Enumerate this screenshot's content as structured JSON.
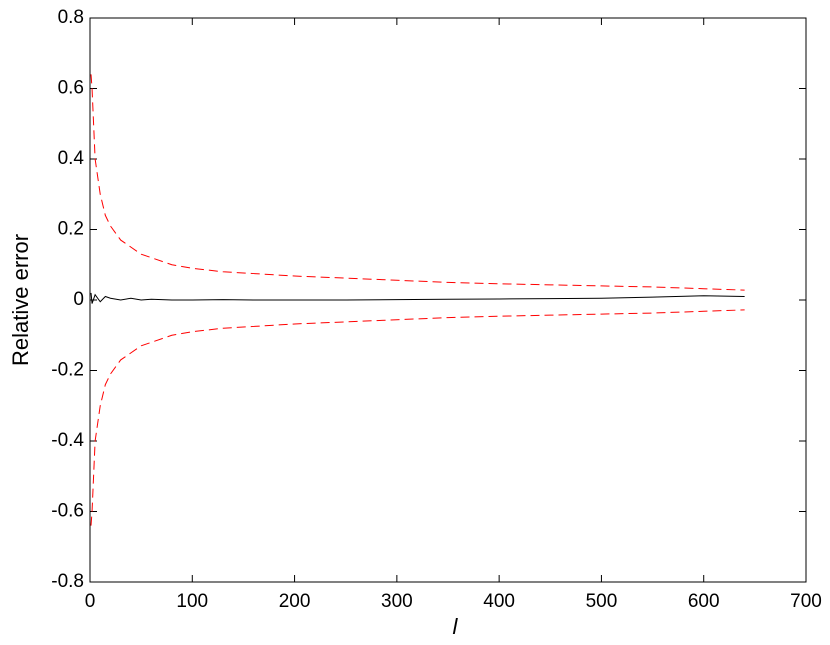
{
  "chart_data": {
    "type": "line",
    "xlabel": "l",
    "ylabel": "Relative error",
    "x": [
      1,
      2,
      5,
      10,
      15,
      20,
      30,
      40,
      50,
      60,
      80,
      100,
      130,
      160,
      200,
      250,
      300,
      350,
      400,
      450,
      500,
      550,
      600,
      640
    ],
    "series": [
      {
        "color": "#ff0000",
        "dashed": true,
        "values": [
          0.64,
          0.6,
          0.4,
          0.3,
          0.24,
          0.21,
          0.17,
          0.15,
          0.13,
          0.12,
          0.1,
          0.09,
          0.08,
          0.075,
          0.068,
          0.062,
          0.056,
          0.05,
          0.046,
          0.043,
          0.04,
          0.037,
          0.032,
          0.028
        ]
      },
      {
        "color": "#ff0000",
        "dashed": true,
        "values": [
          -0.64,
          -0.6,
          -0.4,
          -0.3,
          -0.24,
          -0.21,
          -0.17,
          -0.15,
          -0.13,
          -0.12,
          -0.1,
          -0.09,
          -0.08,
          -0.075,
          -0.068,
          -0.062,
          -0.056,
          -0.05,
          -0.046,
          -0.043,
          -0.04,
          -0.037,
          -0.032,
          -0.028
        ]
      },
      {
        "color": "#000000",
        "dashed": false,
        "values": [
          0.02,
          -0.01,
          0.015,
          -0.005,
          0.01,
          0.005,
          0,
          0.005,
          0,
          0.002,
          0,
          0,
          0.001,
          0,
          0,
          0,
          0.001,
          0.002,
          0.003,
          0.004,
          0.005,
          0.008,
          0.012,
          0.01
        ]
      }
    ],
    "xlim": [
      0,
      700
    ],
    "xticks": [
      0,
      100,
      200,
      300,
      400,
      500,
      600,
      700
    ],
    "ylim": [
      -0.8,
      0.8
    ],
    "yticks": [
      -0.8,
      -0.6,
      -0.4,
      -0.2,
      0,
      0.2,
      0.4,
      0.6,
      0.8
    ]
  }
}
